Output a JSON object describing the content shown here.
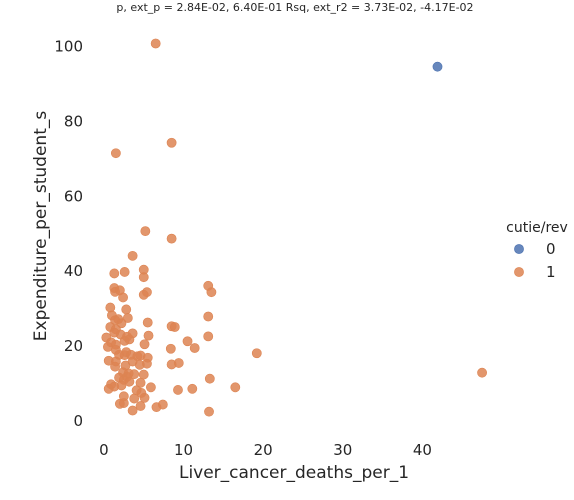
{
  "chart_data": {
    "type": "scatter",
    "title": "p, ext_p = 2.84E-02, 6.40E-01 Rsq, ext_r2 = 3.73E-02, -4.17E-02",
    "xlabel": "Liver_cancer_deaths_per_1",
    "ylabel": "Expenditure_per_student_s",
    "xlim": [
      -1.5,
      49.5
    ],
    "ylim": [
      -4,
      106
    ],
    "xticks": [
      0,
      10,
      20,
      30,
      40
    ],
    "yticks": [
      0,
      20,
      40,
      60,
      80,
      100
    ],
    "grid": false,
    "legend": {
      "title": "cutie/rev",
      "placement": "right"
    },
    "series": [
      {
        "name": "0",
        "color": "#4c72b0",
        "points": [
          [
            41.9,
            94.6
          ]
        ]
      },
      {
        "name": "1",
        "color": "#dd8452",
        "points": [
          [
            6.5,
            100.8
          ],
          [
            8.5,
            74.3
          ],
          [
            1.5,
            71.5
          ],
          [
            5.2,
            50.7
          ],
          [
            8.5,
            48.7
          ],
          [
            3.6,
            44.1
          ],
          [
            5.0,
            40.4
          ],
          [
            1.3,
            39.4
          ],
          [
            2.6,
            39.8
          ],
          [
            5.0,
            38.4
          ],
          [
            13.1,
            36.1
          ],
          [
            1.3,
            35.5
          ],
          [
            1.4,
            34.5
          ],
          [
            13.5,
            34.4
          ],
          [
            5.4,
            34.4
          ],
          [
            5.0,
            33.7
          ],
          [
            2.0,
            34.9
          ],
          [
            2.4,
            33.0
          ],
          [
            0.8,
            30.3
          ],
          [
            2.8,
            29.8
          ],
          [
            1.0,
            28.2
          ],
          [
            1.8,
            27.2
          ],
          [
            3.0,
            27.5
          ],
          [
            1.4,
            26.9
          ],
          [
            2.2,
            26.1
          ],
          [
            5.5,
            26.3
          ],
          [
            0.8,
            25.1
          ],
          [
            1.5,
            24.5
          ],
          [
            3.6,
            23.4
          ],
          [
            8.5,
            25.3
          ],
          [
            8.9,
            25.1
          ],
          [
            13.1,
            27.9
          ],
          [
            1.3,
            23.6
          ],
          [
            2.1,
            23.1
          ],
          [
            2.9,
            22.5
          ],
          [
            5.6,
            22.8
          ],
          [
            13.1,
            22.6
          ],
          [
            0.3,
            22.3
          ],
          [
            0.9,
            21.0
          ],
          [
            1.5,
            20.4
          ],
          [
            2.6,
            21.4
          ],
          [
            3.2,
            21.8
          ],
          [
            10.5,
            21.3
          ],
          [
            0.5,
            19.8
          ],
          [
            1.5,
            19.0
          ],
          [
            2.8,
            18.4
          ],
          [
            5.1,
            20.5
          ],
          [
            8.4,
            19.3
          ],
          [
            11.4,
            19.5
          ],
          [
            1.9,
            17.7
          ],
          [
            2.6,
            17.6
          ],
          [
            3.4,
            17.7
          ],
          [
            4.2,
            17.3
          ],
          [
            4.6,
            17.5
          ],
          [
            5.5,
            16.9
          ],
          [
            0.6,
            16.1
          ],
          [
            1.5,
            15.9
          ],
          [
            3.6,
            15.9
          ],
          [
            5.4,
            15.3
          ],
          [
            9.4,
            15.5
          ],
          [
            19.2,
            18.1
          ],
          [
            1.4,
            14.5
          ],
          [
            2.7,
            14.8
          ],
          [
            4.5,
            15.0
          ],
          [
            8.5,
            15.1
          ],
          [
            2.4,
            13.0
          ],
          [
            3.1,
            12.7
          ],
          [
            3.8,
            12.5
          ],
          [
            5.0,
            12.4
          ],
          [
            1.9,
            11.6
          ],
          [
            2.5,
            11.0
          ],
          [
            2.9,
            11.8
          ],
          [
            3.2,
            10.5
          ],
          [
            4.6,
            10.2
          ],
          [
            13.3,
            11.3
          ],
          [
            0.9,
            9.8
          ],
          [
            1.3,
            9.2
          ],
          [
            2.2,
            9.5
          ],
          [
            5.9,
            9.0
          ],
          [
            9.3,
            8.3
          ],
          [
            11.1,
            8.6
          ],
          [
            16.5,
            9.0
          ],
          [
            0.6,
            8.6
          ],
          [
            4.1,
            8.2
          ],
          [
            4.7,
            7.5
          ],
          [
            47.5,
            12.9
          ],
          [
            2.5,
            6.6
          ],
          [
            3.8,
            6.0
          ],
          [
            5.1,
            6.2
          ],
          [
            2.0,
            4.6
          ],
          [
            2.5,
            4.8
          ],
          [
            4.6,
            4.0
          ],
          [
            6.6,
            3.7
          ],
          [
            7.4,
            4.4
          ],
          [
            3.6,
            2.8
          ],
          [
            13.2,
            2.5
          ]
        ]
      }
    ]
  }
}
